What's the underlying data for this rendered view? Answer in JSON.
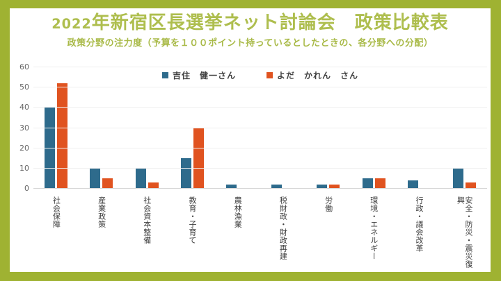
{
  "header": {
    "title_prefix": "2022",
    "title_main": "年新宿区長選挙ネット討論会　政策比較表",
    "subtitle": "政策分野の注力度（予算を１００ポイント持っているとしたときの、各分野への分配）"
  },
  "colors": {
    "frame_green": "#9fb232",
    "title_green": "#aebe4e",
    "subtitle_green": "#a9ba48",
    "series_blue": "#2e6b8c",
    "series_orange": "#e05320",
    "gridline": "#efefef",
    "axis_line": "#d5d5d5",
    "tick_text": "#666666",
    "label_text": "#3d3d3d"
  },
  "chart_data": {
    "type": "bar",
    "title": "2022年新宿区長選挙ネット討論会　政策比較表",
    "subtitle": "政策分野の注力度（予算を１００ポイント持っているとしたときの、各分野への分配）",
    "categories": [
      "社会保障",
      "産業政策",
      "社会資本整備",
      "教育・子育て",
      "農林漁業",
      "税財政・財政再建",
      "労働",
      "環境・エネルギー",
      "行政・議会改革",
      "安全・防災・震災復興"
    ],
    "series": [
      {
        "name": "吉住　健一さん",
        "color": "#2e6b8c",
        "values": [
          40,
          10,
          10,
          15,
          2,
          2,
          2,
          5,
          4,
          10
        ]
      },
      {
        "name": "よだ　かれん　さん",
        "color": "#e05320",
        "values": [
          52,
          5,
          3,
          30,
          0,
          0,
          2,
          5,
          0,
          3
        ]
      }
    ],
    "xlabel": "",
    "ylabel": "",
    "ylim": [
      0,
      60
    ],
    "yticks": [
      0,
      10,
      20,
      30,
      40,
      50,
      60
    ],
    "grid": "horizontal",
    "legend_position": "top-center"
  }
}
